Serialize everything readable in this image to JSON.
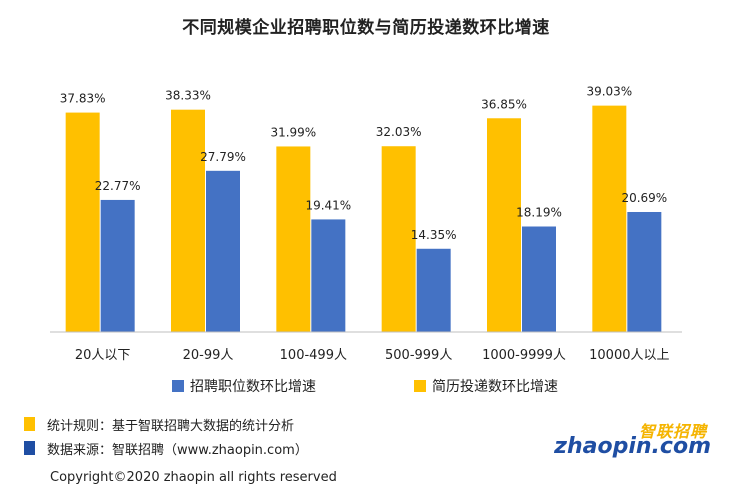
{
  "colors": {
    "series_yellow": "#FFC000",
    "series_blue": "#4472C4",
    "note_yellow": "#FFC000",
    "note_blue": "#1F4EA3",
    "logo_yellow": "#F5B400",
    "logo_blue": "#1F4EA3"
  },
  "chart_data": {
    "type": "bar",
    "title": "不同规模企业招聘职位数与简历投递数环比增速",
    "categories": [
      "20人以下",
      "20-99人",
      "100-499人",
      "500-999人",
      "1000-9999人",
      "10000人以上"
    ],
    "series": [
      {
        "name": "简历投递数环比增速",
        "color": "#FFC000",
        "values": [
          37.83,
          38.33,
          31.99,
          32.03,
          36.85,
          39.03
        ],
        "labels": [
          "37.83%",
          "38.33%",
          "31.99%",
          "32.03%",
          "36.85%",
          "39.03%"
        ]
      },
      {
        "name": "招聘职位数环比增速",
        "color": "#4472C4",
        "values": [
          22.77,
          27.79,
          19.41,
          14.35,
          18.19,
          20.69
        ],
        "labels": [
          "22.77%",
          "27.79%",
          "19.41%",
          "14.35%",
          "18.19%",
          "20.69%"
        ]
      }
    ],
    "legend_order": [
      "招聘职位数环比增速",
      "简历投递数环比增速"
    ],
    "ylim": [
      0,
      50
    ],
    "grid": false,
    "legend_position": "bottom"
  },
  "notes": {
    "rule": "统计规则：基于智联招聘大数据的统计分析",
    "source": "数据来源：智联招聘（www.zhaopin.com）"
  },
  "copyright": "Copyright©2020 zhaopin all rights reserved",
  "logo": {
    "cn": "智联招聘",
    "en": "zhaopin.com"
  }
}
